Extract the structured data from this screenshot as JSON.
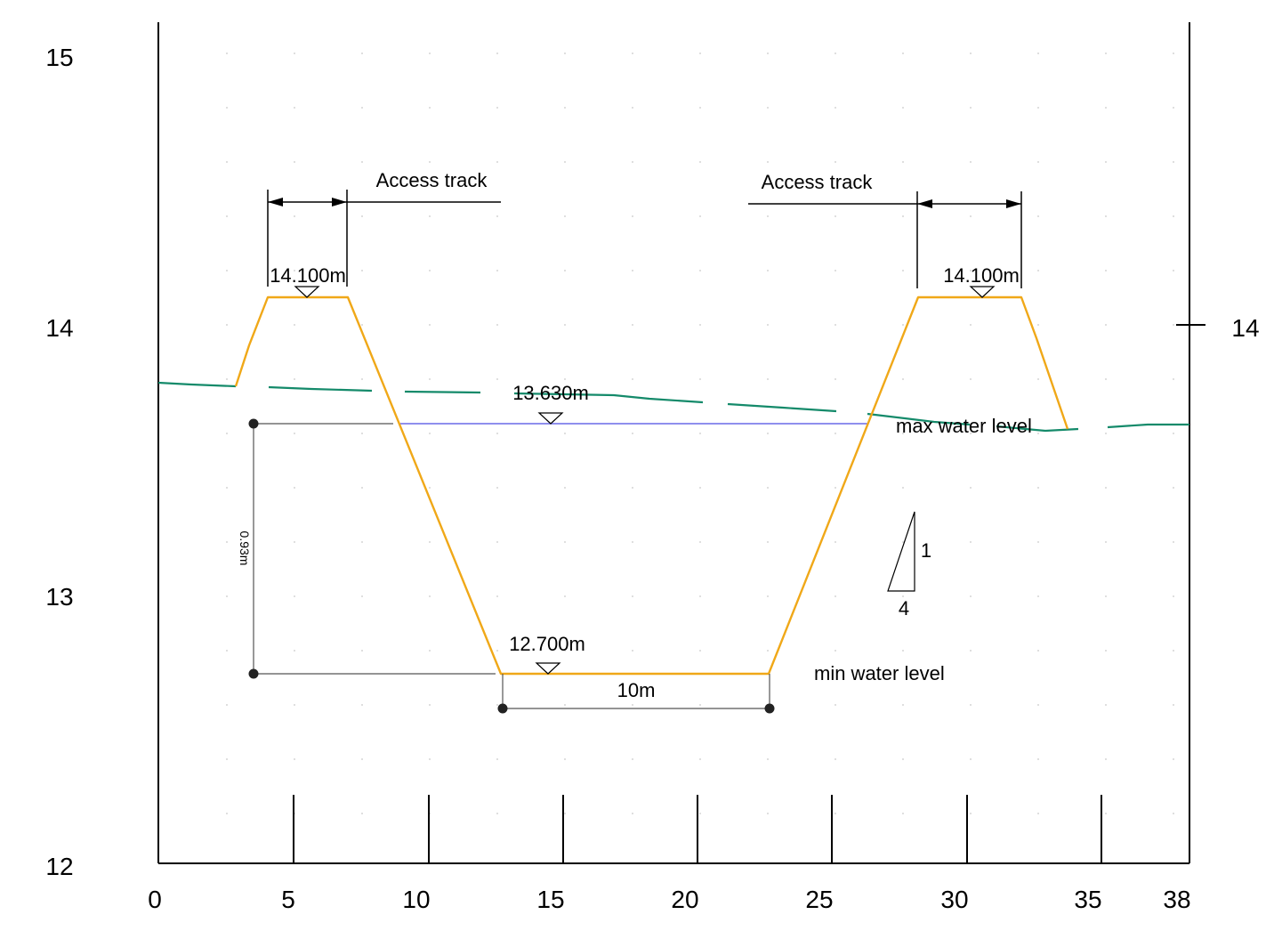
{
  "chart_data": {
    "type": "diagram",
    "x_ticks": [
      "0",
      "5",
      "10",
      "15",
      "20",
      "25",
      "30",
      "35",
      "38"
    ],
    "y_ticks_left": [
      "15",
      "14",
      "13",
      "12"
    ],
    "y_tick_right": "14",
    "labels": {
      "access_track_left": "Access track",
      "access_track_right": "Access track",
      "crest_left_level": "14.100m",
      "crest_right_level": "14.100m",
      "max_level_value": "13.630m",
      "max_level_text": "max water level",
      "min_level_value": "12.700m",
      "min_level_text": "min water level",
      "depth": "0.93m",
      "bottom_width": "10m",
      "slope_rise": "1",
      "slope_run": "4"
    },
    "colors": {
      "embankment": "#f0a818",
      "ground": "#148a6a",
      "water": "#6a6ae8",
      "line": "#000000",
      "dimension": "#555555",
      "grid_dot": "#c8c8c8"
    }
  }
}
